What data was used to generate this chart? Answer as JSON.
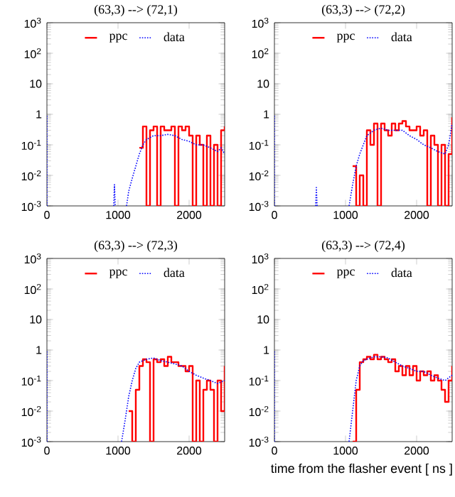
{
  "chart_data": [
    {
      "type": "line",
      "title": "(63,3) --> (72,1)",
      "log": "y",
      "xlim": [
        0,
        2500
      ],
      "ylim": [
        0.001,
        1000
      ],
      "xticks": [
        0,
        1000,
        2000
      ],
      "yticks": [
        {
          "value": 0.001,
          "label": "10$^{-3}$"
        },
        {
          "value": 0.01,
          "label": "10$^{-2}$"
        },
        {
          "value": 0.1,
          "label": "10$^{-1}$"
        },
        1,
        10,
        {
          "value": 100,
          "label": "10$^{2}$"
        },
        {
          "value": 1000,
          "label": "10$^{3}$"
        }
      ],
      "legend": "top",
      "marker": "none",
      "grid": false,
      "series": [
        {
          "name": "ppc",
          "type": "step",
          "color": "#ff0000",
          "line_style": "solid",
          "x": [
            1300,
            1350,
            1400,
            1450,
            1500,
            1550,
            1600,
            1650,
            1700,
            1750,
            1800,
            1850,
            1900,
            1950,
            2000,
            2050,
            2100,
            2150,
            2200,
            2250,
            2300,
            2350,
            2400,
            2450,
            2500
          ],
          "values": [
            0.08,
            0.4,
            0.001,
            0.3,
            0.4,
            0.001,
            0.4,
            0.3,
            0.3,
            0.4,
            0.001,
            0.4,
            0.3,
            0.4,
            0.2,
            0.001,
            0.2,
            0.1,
            0.001,
            0.2,
            0.001,
            0.1,
            0.001,
            0.3,
            0.4
          ]
        },
        {
          "name": "data",
          "color": "#0000ff",
          "line_style": "dotted",
          "x": [
            0,
            0,
            10,
            940,
            950,
            960,
            970,
            1120,
            1150,
            1200,
            1250,
            1300,
            1350,
            1400,
            1500,
            1600,
            1700,
            1800,
            1900,
            2000,
            2100,
            2200,
            2300,
            2400,
            2450,
            2500
          ],
          "values": [
            0.001,
            1,
            null,
            0.001,
            0.005,
            0.001,
            null,
            0.001,
            0.003,
            0.008,
            0.02,
            0.05,
            0.1,
            0.15,
            0.2,
            0.2,
            0.22,
            0.2,
            0.15,
            0.13,
            0.1,
            0.1,
            0.08,
            0.06,
            0.08,
            0.05
          ]
        }
      ]
    },
    {
      "type": "line",
      "title": "(63,3) --> (72,2)",
      "log": "y",
      "xlim": [
        0,
        2500
      ],
      "ylim": [
        0.001,
        1000
      ],
      "xticks": [
        0,
        1000,
        2000
      ],
      "yticks": [
        {
          "value": 0.001,
          "label": "10$^{-3}$"
        },
        {
          "value": 0.01,
          "label": "10$^{-2}$"
        },
        {
          "value": 0.1,
          "label": "10$^{-1}$"
        },
        1,
        10,
        {
          "value": 100,
          "label": "10$^{2}$"
        },
        {
          "value": 1000,
          "label": "10$^{3}$"
        }
      ],
      "legend": "top",
      "marker": "none",
      "grid": false,
      "series": [
        {
          "name": "ppc",
          "type": "step",
          "color": "#ff0000",
          "line_style": "solid",
          "x": [
            1100,
            1150,
            1200,
            1250,
            1300,
            1350,
            1400,
            1450,
            1500,
            1550,
            1600,
            1650,
            1700,
            1750,
            1800,
            1850,
            1900,
            1950,
            2000,
            2050,
            2100,
            2150,
            2200,
            2250,
            2300,
            2350,
            2400,
            2450,
            2500
          ],
          "values": [
            0.02,
            0.001,
            0.01,
            0.001,
            0.3,
            0.1,
            0.5,
            0.001,
            0.5,
            0.3,
            0.2,
            0.5,
            0.3,
            0.5,
            0.6,
            0.4,
            0.3,
            0.3,
            0.4,
            0.2,
            0.3,
            0.001,
            0.2,
            0.1,
            0.001,
            0.1,
            0.001,
            0.05,
            0.8
          ]
        },
        {
          "name": "data",
          "color": "#0000ff",
          "line_style": "dotted",
          "x": [
            0,
            0,
            10,
            580,
            590,
            600,
            610,
            1050,
            1100,
            1150,
            1200,
            1250,
            1300,
            1400,
            1500,
            1600,
            1700,
            1800,
            1900,
            2000,
            2100,
            2200,
            2300,
            2400,
            2450,
            2500
          ],
          "values": [
            0.001,
            1,
            null,
            0.001,
            0.004,
            0.001,
            null,
            0.001,
            0.005,
            0.02,
            0.05,
            0.1,
            0.2,
            0.3,
            0.35,
            0.3,
            0.3,
            0.3,
            0.2,
            0.15,
            0.1,
            0.08,
            0.06,
            0.05,
            0.1,
            0.5
          ]
        }
      ]
    },
    {
      "type": "line",
      "title": "(63,3) --> (72,3)",
      "log": "y",
      "xlim": [
        0,
        2500
      ],
      "ylim": [
        0.001,
        1000
      ],
      "xticks": [
        0,
        1000,
        2000
      ],
      "yticks": [
        {
          "value": 0.001,
          "label": "10$^{-3}$"
        },
        {
          "value": 0.01,
          "label": "10$^{-2}$"
        },
        {
          "value": 0.1,
          "label": "10$^{-1}$"
        },
        1,
        10,
        {
          "value": 100,
          "label": "10$^{2}$"
        },
        {
          "value": 1000,
          "label": "10$^{3}$"
        }
      ],
      "legend": "top",
      "marker": "none",
      "grid": false,
      "series": [
        {
          "name": "ppc",
          "type": "step",
          "color": "#ff0000",
          "line_style": "solid",
          "x": [
            1150,
            1200,
            1250,
            1300,
            1350,
            1400,
            1450,
            1500,
            1550,
            1600,
            1650,
            1700,
            1750,
            1800,
            1850,
            1900,
            1950,
            2000,
            2050,
            2100,
            2150,
            2200,
            2250,
            2300,
            2350,
            2400,
            2450,
            2500
          ],
          "values": [
            0.01,
            0.001,
            0.05,
            0.3,
            0.5,
            0.4,
            0.001,
            0.5,
            0.4,
            0.5,
            0.3,
            0.6,
            0.4,
            0.4,
            0.3,
            0.3,
            0.2,
            0.3,
            0.001,
            0.1,
            0.001,
            0.05,
            0.1,
            0.05,
            0.001,
            0.1,
            0.01,
            0.3
          ]
        },
        {
          "name": "data",
          "color": "#0000ff",
          "line_style": "dotted",
          "x": [
            0,
            0,
            10,
            1050,
            1100,
            1150,
            1200,
            1250,
            1300,
            1400,
            1500,
            1600,
            1700,
            1800,
            1900,
            2000,
            2100,
            2200,
            2300,
            2400,
            2500
          ],
          "values": [
            0.001,
            1,
            null,
            0.001,
            0.005,
            0.03,
            0.1,
            0.25,
            0.4,
            0.5,
            0.55,
            0.45,
            0.4,
            0.35,
            0.3,
            0.2,
            0.15,
            0.12,
            0.1,
            0.08,
            0.1
          ]
        }
      ]
    },
    {
      "type": "line",
      "title": "(63,3) --> (72,4)",
      "xlabel": "time from the flasher event [ ns ]",
      "log": "y",
      "xlim": [
        0,
        2500
      ],
      "ylim": [
        0.001,
        1000
      ],
      "xticks": [
        0,
        1000,
        2000
      ],
      "yticks": [
        {
          "value": 0.001,
          "label": "10$^{-3}$"
        },
        {
          "value": 0.01,
          "label": "10$^{-2}$"
        },
        {
          "value": 0.1,
          "label": "10$^{-1}$"
        },
        1,
        10,
        {
          "value": 100,
          "label": "10$^{2}$"
        },
        {
          "value": 1000,
          "label": "10$^{3}$"
        }
      ],
      "legend": "top",
      "marker": "none",
      "grid": false,
      "series": [
        {
          "name": "ppc",
          "type": "step",
          "color": "#ff0000",
          "line_style": "solid",
          "x": [
            1100,
            1150,
            1200,
            1250,
            1300,
            1350,
            1400,
            1450,
            1500,
            1550,
            1600,
            1650,
            1700,
            1750,
            1800,
            1850,
            1900,
            1950,
            2000,
            2050,
            2100,
            2150,
            2200,
            2250,
            2300,
            2350,
            2400,
            2450,
            2500
          ],
          "values": [
            0.001,
            0.05,
            0.4,
            0.5,
            0.6,
            0.5,
            0.7,
            0.5,
            0.6,
            0.5,
            0.4,
            0.5,
            0.2,
            0.3,
            0.15,
            0.3,
            0.15,
            0.3,
            0.1,
            0.2,
            0.15,
            0.2,
            0.1,
            0.15,
            0.1,
            0.05,
            0.02,
            0.1,
            0.3
          ]
        },
        {
          "name": "data",
          "color": "#0000ff",
          "line_style": "dotted",
          "x": [
            0,
            0,
            10,
            1050,
            1100,
            1150,
            1200,
            1250,
            1300,
            1400,
            1500,
            1600,
            1700,
            1800,
            1900,
            2000,
            2100,
            2200,
            2300,
            2400,
            2500
          ],
          "values": [
            0.001,
            1,
            null,
            0.001,
            0.01,
            0.1,
            0.3,
            0.45,
            0.5,
            0.6,
            0.6,
            0.55,
            0.4,
            0.3,
            0.25,
            0.2,
            0.2,
            0.15,
            0.12,
            0.1,
            0.15
          ]
        }
      ]
    }
  ]
}
